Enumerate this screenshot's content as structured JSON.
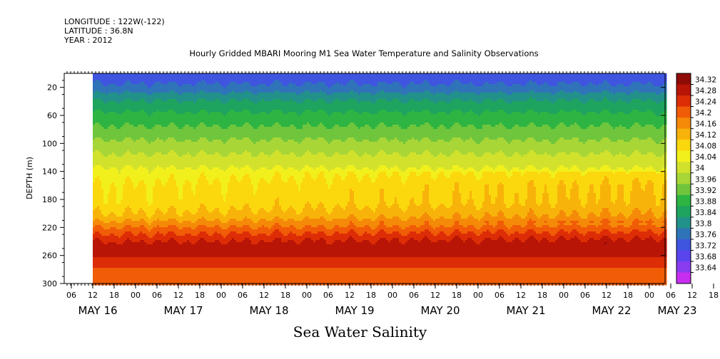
{
  "header": {
    "longitude": "LONGITUDE : 122W(-122)",
    "latitude": "LATITUDE : 36.8N",
    "year": "YEAR : 2012"
  },
  "title": "Hourly Gridded MBARI Mooring M1 Sea Water Temperature and Salinity Observations",
  "bottom_title": "Sea Water Salinity",
  "chart_data": {
    "type": "heatmap",
    "variable": "Sea Water Salinity",
    "ylabel": "DEPTH (m)",
    "y_inverted": true,
    "ylim": [
      300,
      0
    ],
    "y_ticks": [
      20,
      60,
      100,
      140,
      180,
      220,
      260,
      300
    ],
    "x_hour_ticks": [
      "06",
      "12",
      "18",
      "00",
      "06",
      "12",
      "18",
      "00",
      "06",
      "12",
      "18",
      "00",
      "06",
      "12",
      "18",
      "00",
      "06",
      "12",
      "18",
      "00",
      "06",
      "12",
      "18",
      "00",
      "06",
      "12",
      "18",
      "00",
      "06",
      "12",
      "18",
      "00"
    ],
    "x_day_labels": [
      "MAY 16",
      "MAY 17",
      "MAY 18",
      "MAY 19",
      "MAY 20",
      "MAY 21",
      "MAY 22",
      "MAY 23"
    ],
    "data_start": "MAY 16 12",
    "data_end": "MAY 23 00",
    "colorbar": {
      "levels": [
        33.64,
        33.68,
        33.72,
        33.76,
        33.8,
        33.84,
        33.88,
        33.92,
        33.96,
        34,
        34.04,
        34.08,
        34.12,
        34.16,
        34.2,
        34.24,
        34.28,
        34.32
      ],
      "colors": [
        "#c72ef0",
        "#8a3cf0",
        "#5a44ee",
        "#3f55e0",
        "#2f74b8",
        "#22918a",
        "#1ea45e",
        "#2db443",
        "#6fc63c",
        "#a8d637",
        "#d2e22c",
        "#f2f01c",
        "#fbd80d",
        "#f8b30a",
        "#f58a08",
        "#f15c07",
        "#dd2d06",
        "#b81506",
        "#8e0b08"
      ],
      "label_ticks": [
        "34.32",
        "34.28",
        "34.24",
        "34.2",
        "34.16",
        "34.12",
        "34.08",
        "34.04",
        "34",
        "33.96",
        "33.92",
        "33.88",
        "33.84",
        "33.8",
        "33.76",
        "33.72",
        "33.68",
        "33.64"
      ]
    },
    "profile": {
      "depth": [
        5,
        20,
        35,
        55,
        80,
        110,
        140,
        160,
        185,
        205,
        220,
        235,
        250,
        265,
        285,
        300
      ],
      "salinity": [
        33.74,
        33.77,
        33.83,
        33.88,
        33.93,
        33.99,
        34.05,
        34.08,
        34.09,
        34.13,
        34.2,
        34.26,
        34.31,
        34.27,
        34.22,
        34.2
      ]
    }
  }
}
